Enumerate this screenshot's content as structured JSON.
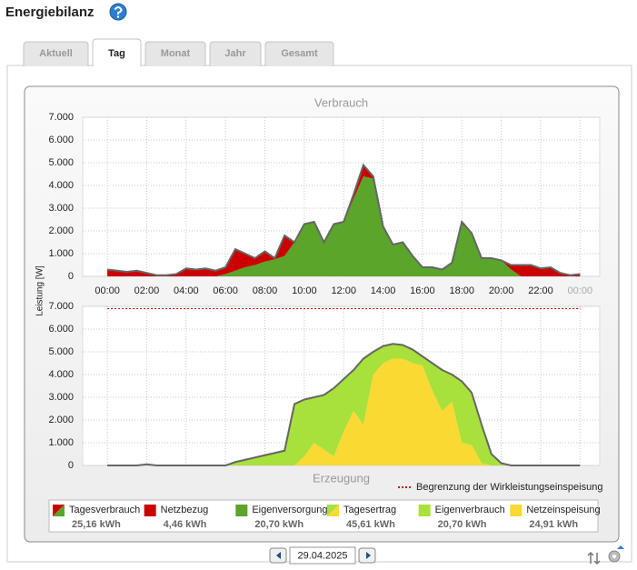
{
  "header": {
    "title": "Energiebilanz"
  },
  "tabs": [
    "Aktuell",
    "Tag",
    "Monat",
    "Jahr",
    "Gesamt"
  ],
  "y_axis_label": "Leistung [W]",
  "date": "29.04.2025",
  "chart_data": [
    {
      "type": "area",
      "title": "Verbrauch",
      "total": {
        "name": "Tagesverbrauch",
        "energy": "25,16 kWh",
        "color": "#666666"
      },
      "x": [
        0,
        0.5,
        1,
        1.5,
        2,
        2.5,
        3,
        3.5,
        4,
        4.5,
        5,
        5.5,
        6,
        6.5,
        7,
        7.5,
        8,
        8.5,
        9,
        9.5,
        10,
        10.5,
        11,
        11.5,
        12,
        12.5,
        13,
        13.5,
        14,
        14.5,
        15,
        15.5,
        16,
        16.5,
        17,
        17.5,
        18,
        18.5,
        19,
        19.5,
        20,
        20.5,
        21,
        21.5,
        22,
        22.5,
        23,
        23.5,
        24
      ],
      "series": [
        {
          "name": "Netzbezug",
          "energy": "4,46 kWh",
          "color": "#cc0000",
          "values": [
            300,
            250,
            200,
            250,
            150,
            50,
            50,
            100,
            350,
            300,
            350,
            250,
            300,
            950,
            600,
            300,
            450,
            50,
            900,
            0,
            0,
            0,
            0,
            0,
            0,
            200,
            500,
            100,
            0,
            0,
            0,
            0,
            0,
            0,
            0,
            0,
            100,
            0,
            0,
            0,
            0,
            200,
            500,
            500,
            350,
            400,
            150,
            50,
            100
          ]
        },
        {
          "name": "Eigenversorgung",
          "energy": "20,70 kWh",
          "color": "#5aa52a",
          "values": [
            0,
            0,
            0,
            0,
            0,
            0,
            0,
            0,
            0,
            0,
            0,
            0,
            100,
            250,
            400,
            500,
            650,
            750,
            900,
            1500,
            2300,
            2400,
            1500,
            2300,
            2400,
            3400,
            4400,
            4300,
            2200,
            1400,
            1500,
            900,
            400,
            400,
            300,
            600,
            2300,
            1900,
            800,
            800,
            700,
            300,
            0,
            0,
            0,
            0,
            0,
            0,
            0
          ]
        }
      ],
      "xlim": [
        -1.25,
        25
      ],
      "xticks": [
        {
          "value": 0,
          "label": "00:00"
        },
        {
          "value": 2,
          "label": "02:00"
        },
        {
          "value": 4,
          "label": "04:00"
        },
        {
          "value": 6,
          "label": "06:00"
        },
        {
          "value": 8,
          "label": "08:00"
        },
        {
          "value": 10,
          "label": "10:00"
        },
        {
          "value": 12,
          "label": "12:00"
        },
        {
          "value": 14,
          "label": "14:00"
        },
        {
          "value": 16,
          "label": "16:00"
        },
        {
          "value": 18,
          "label": "18:00"
        },
        {
          "value": 20,
          "label": "20:00"
        },
        {
          "value": 22,
          "label": "22:00"
        },
        {
          "value": 24,
          "label": "00:00"
        }
      ],
      "ylim": [
        0,
        7000
      ],
      "yticks": [
        0,
        {
          "value": 1000,
          "label": "1.000"
        },
        {
          "value": 2000,
          "label": "2.000"
        },
        {
          "value": 3000,
          "label": "3.000"
        },
        {
          "value": 4000,
          "label": "4.000"
        },
        {
          "value": 5000,
          "label": "5.000"
        },
        {
          "value": 6000,
          "label": "6.000"
        },
        {
          "value": 7000,
          "label": "7.000"
        }
      ],
      "grid": true
    },
    {
      "type": "area",
      "title": "Erzeugung",
      "total": {
        "name": "Tagesertrag",
        "energy": "45,61 kWh",
        "color": "#666666"
      },
      "x": [
        0,
        0.5,
        1,
        1.5,
        2,
        2.5,
        3,
        3.5,
        4,
        4.5,
        5,
        5.5,
        6,
        6.5,
        7,
        7.5,
        8,
        8.5,
        9,
        9.5,
        10,
        10.5,
        11,
        11.5,
        12,
        12.5,
        13,
        13.5,
        14,
        14.5,
        15,
        15.5,
        16,
        16.5,
        17,
        17.5,
        18,
        18.5,
        19,
        19.5,
        20,
        20.5,
        21,
        21.5,
        22,
        22.5,
        23,
        23.5,
        24
      ],
      "series": [
        {
          "name": "Eigenverbrauch",
          "energy": "20,70 kWh",
          "color": "#a8e03c",
          "values": [
            0,
            0,
            0,
            0,
            0,
            0,
            0,
            0,
            0,
            0,
            0,
            0,
            0,
            150,
            250,
            350,
            450,
            550,
            650,
            2700,
            2500,
            2000,
            2400,
            3000,
            2300,
            1800,
            2900,
            1000,
            750,
            650,
            600,
            600,
            400,
            1200,
            1800,
            1200,
            2700,
            2300,
            1700,
            500,
            100,
            0,
            0,
            0,
            0,
            0,
            0,
            0,
            0
          ]
        },
        {
          "name": "Netzeinspeisung",
          "energy": "24,91 kWh",
          "color": "#f9d932",
          "values": [
            0,
            0,
            0,
            0,
            50,
            0,
            0,
            0,
            0,
            0,
            0,
            0,
            0,
            0,
            0,
            0,
            0,
            0,
            0,
            0,
            400,
            1000,
            700,
            400,
            1500,
            2400,
            1800,
            4000,
            4500,
            4700,
            4700,
            4500,
            4400,
            3300,
            2400,
            2800,
            1000,
            900,
            100,
            0,
            0,
            0,
            0,
            0,
            0,
            0,
            0,
            0,
            0
          ]
        }
      ],
      "limit": {
        "value": 6900,
        "label": "Begrenzung der Wirkleistungseinspeisung",
        "color": "#cc0000"
      },
      "xlim": [
        -1.25,
        25
      ],
      "ylim": [
        0,
        7000
      ],
      "yticks": [
        0,
        {
          "value": 1000,
          "label": "1.000"
        },
        {
          "value": 2000,
          "label": "2.000"
        },
        {
          "value": 3000,
          "label": "3.000"
        },
        {
          "value": 4000,
          "label": "4.000"
        },
        {
          "value": 5000,
          "label": "5.000"
        },
        {
          "value": 6000,
          "label": "6.000"
        },
        {
          "value": 7000,
          "label": "7.000"
        }
      ],
      "grid": true
    }
  ]
}
